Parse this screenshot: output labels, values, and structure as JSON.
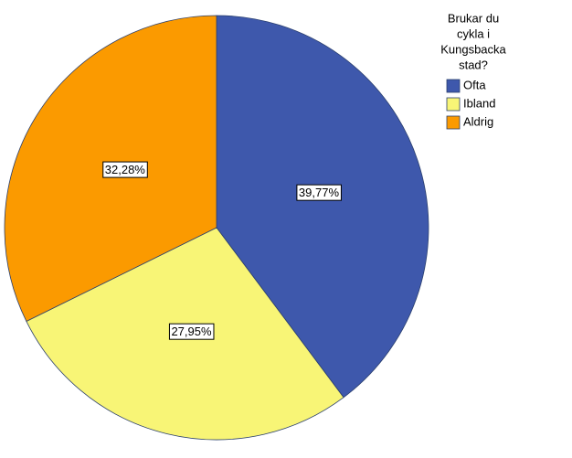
{
  "chart_data": {
    "type": "pie",
    "legend_title": [
      "Brukar du",
      "cykla i",
      "Kungsbacka",
      "stad?"
    ],
    "categories": [
      "Ofta",
      "Ibland",
      "Aldrig"
    ],
    "values": [
      39.77,
      27.95,
      32.28
    ],
    "value_labels": [
      "39,77%",
      "27,95%",
      "32,28%"
    ],
    "colors": [
      "#3e58ac",
      "#f8f576",
      "#fb9a00"
    ],
    "legend": "top-right"
  }
}
